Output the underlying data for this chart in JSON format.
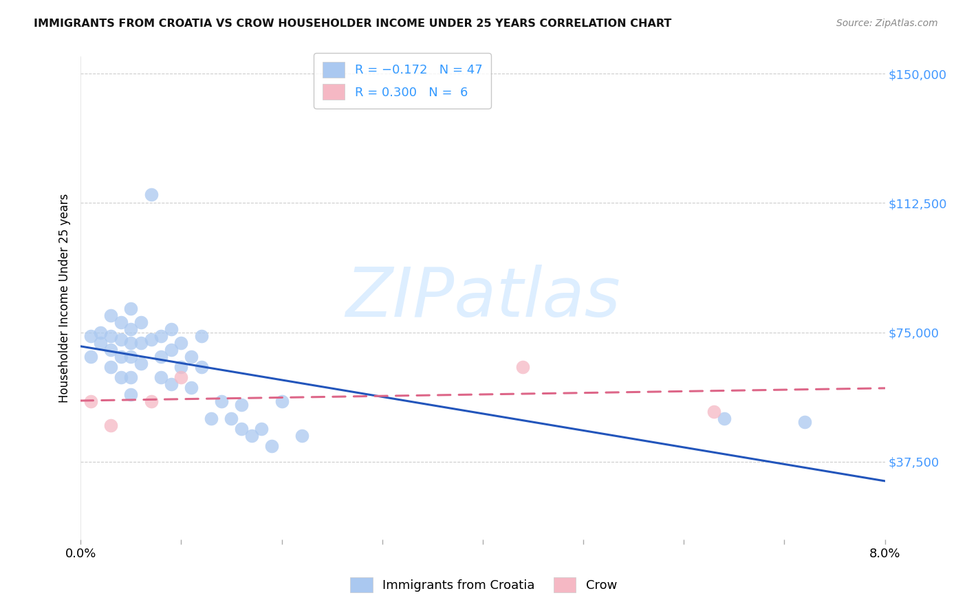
{
  "title": "IMMIGRANTS FROM CROATIA VS CROW HOUSEHOLDER INCOME UNDER 25 YEARS CORRELATION CHART",
  "source": "Source: ZipAtlas.com",
  "ylabel": "Householder Income Under 25 years",
  "xmin": 0.0,
  "xmax": 0.08,
  "ymin": 15000,
  "ymax": 155000,
  "yticks": [
    37500,
    75000,
    112500,
    150000
  ],
  "ytick_labels": [
    "$37,500",
    "$75,000",
    "$112,500",
    "$150,000"
  ],
  "xticks": [
    0.0,
    0.01,
    0.02,
    0.03,
    0.04,
    0.05,
    0.06,
    0.07,
    0.08
  ],
  "xtick_labels": [
    "0.0%",
    "",
    "",
    "",
    "",
    "",
    "",
    "",
    "8.0%"
  ],
  "legend_label1": "Immigrants from Croatia",
  "legend_label2": "Crow",
  "blue_color": "#aac8f0",
  "pink_color": "#f5b8c4",
  "line_blue": "#2255bb",
  "line_pink": "#dd6688",
  "watermark": "ZIPatlas",
  "watermark_color": "#ddeeff",
  "croatia_x": [
    0.001,
    0.001,
    0.002,
    0.002,
    0.003,
    0.003,
    0.003,
    0.003,
    0.004,
    0.004,
    0.004,
    0.004,
    0.005,
    0.005,
    0.005,
    0.005,
    0.005,
    0.005,
    0.006,
    0.006,
    0.006,
    0.007,
    0.007,
    0.008,
    0.008,
    0.008,
    0.009,
    0.009,
    0.009,
    0.01,
    0.01,
    0.011,
    0.011,
    0.012,
    0.012,
    0.013,
    0.014,
    0.015,
    0.016,
    0.016,
    0.017,
    0.018,
    0.019,
    0.02,
    0.022,
    0.064,
    0.072
  ],
  "croatia_y": [
    68000,
    74000,
    75000,
    72000,
    80000,
    74000,
    70000,
    65000,
    78000,
    73000,
    68000,
    62000,
    82000,
    76000,
    72000,
    68000,
    62000,
    57000,
    78000,
    72000,
    66000,
    115000,
    73000,
    74000,
    68000,
    62000,
    76000,
    70000,
    60000,
    72000,
    65000,
    68000,
    59000,
    74000,
    65000,
    50000,
    55000,
    50000,
    54000,
    47000,
    45000,
    47000,
    42000,
    55000,
    45000,
    50000,
    49000
  ],
  "crow_x": [
    0.001,
    0.003,
    0.007,
    0.01,
    0.044,
    0.063
  ],
  "crow_y": [
    55000,
    48000,
    55000,
    62000,
    65000,
    52000
  ]
}
